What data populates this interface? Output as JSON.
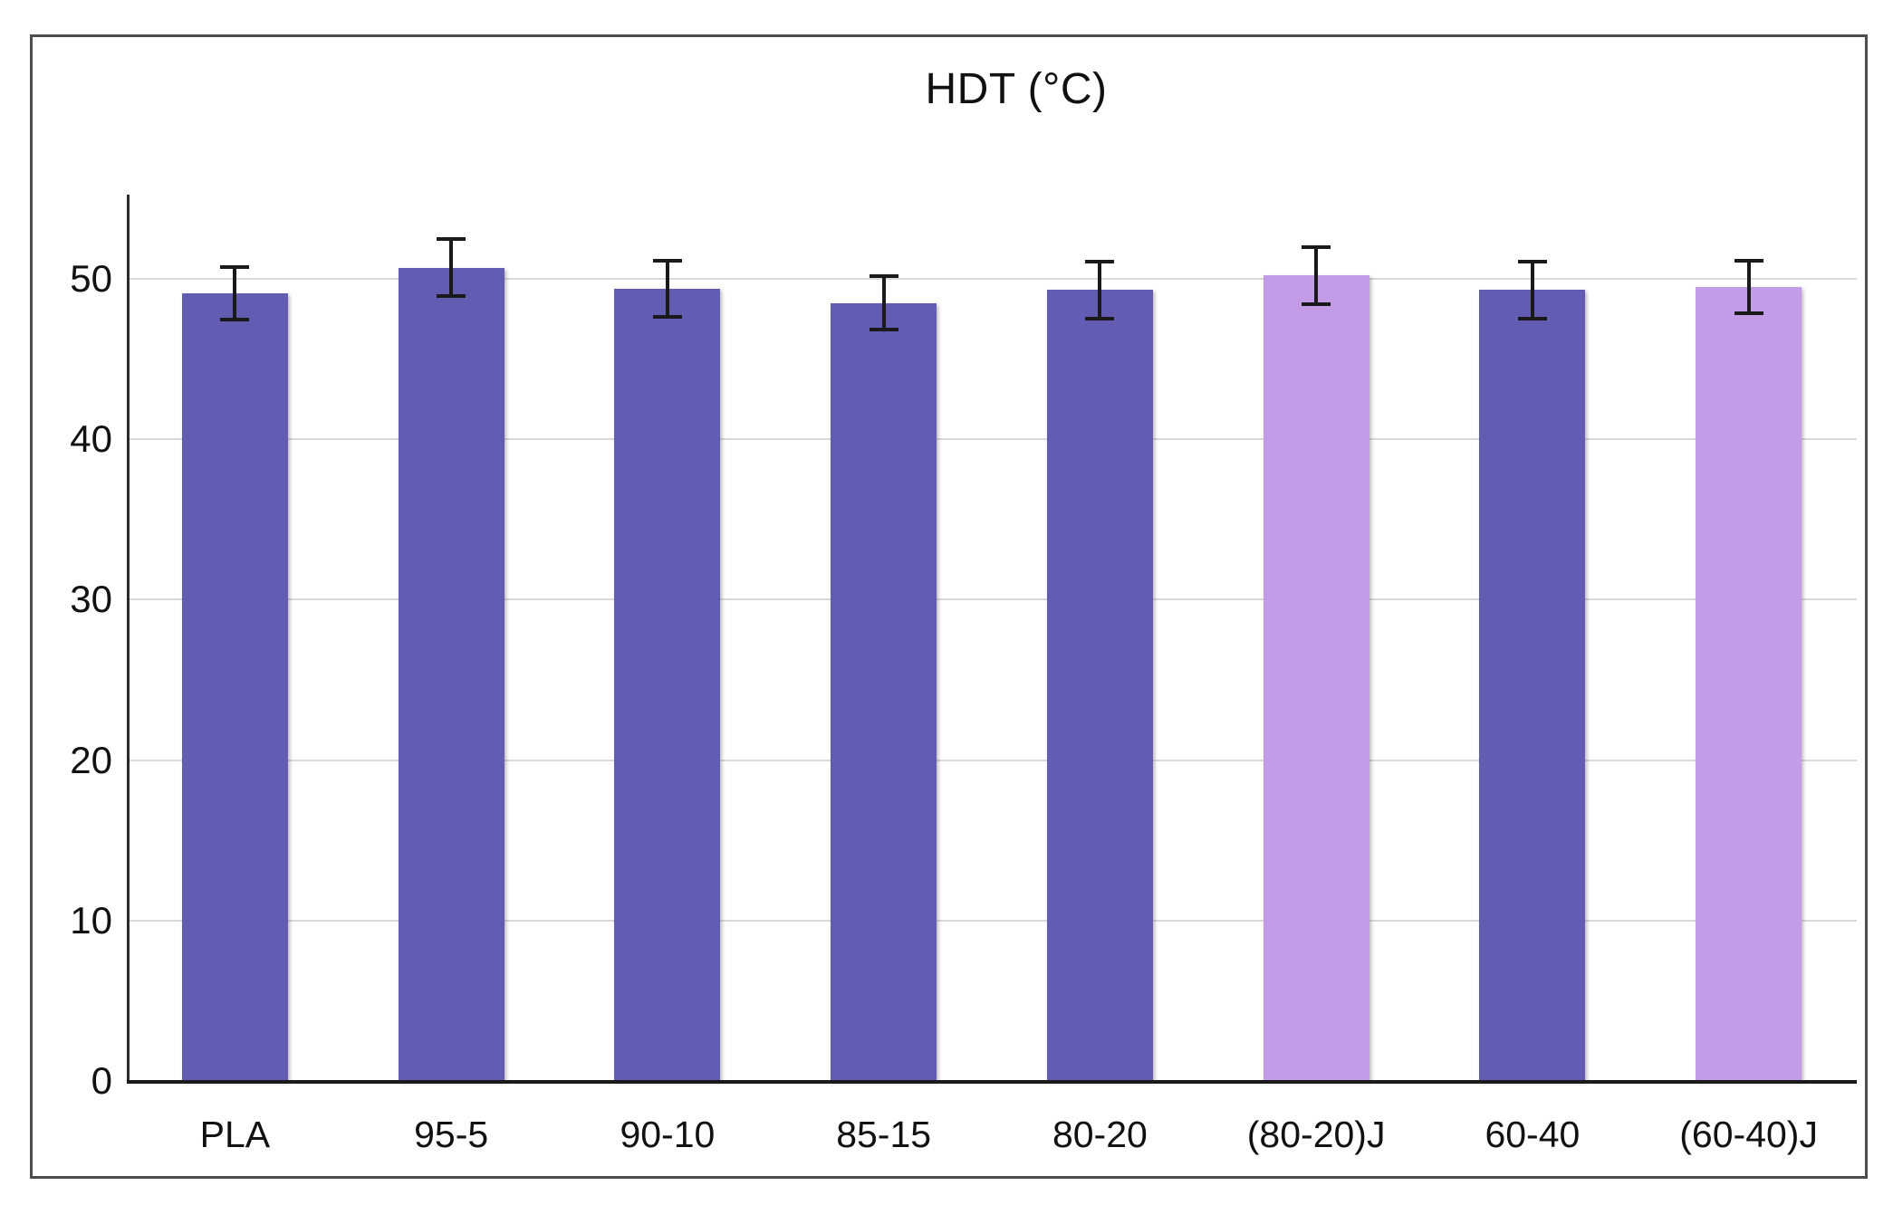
{
  "chart_data": {
    "type": "bar",
    "title": "HDT (°C)",
    "categories": [
      "PLA",
      "95-5",
      "90-10",
      "85-15",
      "80-20",
      "(80-20)J",
      "60-40",
      "(60-40)J"
    ],
    "values": [
      49.1,
      50.7,
      49.4,
      48.5,
      49.3,
      50.2,
      49.3,
      49.5
    ],
    "errors": [
      1.6,
      1.7,
      1.7,
      1.6,
      1.7,
      1.7,
      1.7,
      1.6
    ],
    "color_keys": [
      "dark",
      "dark",
      "dark",
      "dark",
      "dark",
      "light",
      "dark",
      "light"
    ],
    "colors": {
      "dark": "#635cb3",
      "light": "#c39ce8",
      "gridline": "#d9d9d9",
      "y_axis": "#2b2b2b",
      "x_axis": "#1a1a1a",
      "error_bar": "#1a1a1a",
      "text": "#111111"
    },
    "xlabel": "",
    "ylabel": "",
    "ylim": [
      0,
      55
    ],
    "yticks": [
      0,
      10,
      20,
      30,
      40,
      50
    ],
    "grid": true,
    "legend": false
  }
}
